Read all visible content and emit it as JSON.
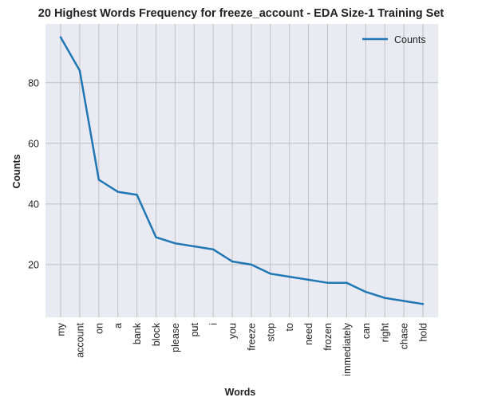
{
  "chart_data": {
    "type": "line",
    "title": "20 Highest Words Frequency for freeze_account - EDA Size-1 Training Set",
    "xlabel": "Words",
    "ylabel": "Counts",
    "categories": [
      "my",
      "account",
      "on",
      "a",
      "bank",
      "block",
      "please",
      "put",
      "i",
      "you",
      "freeze",
      "stop",
      "to",
      "need",
      "frozen",
      "immediately",
      "can",
      "right",
      "chase",
      "hold"
    ],
    "series": [
      {
        "name": "Counts",
        "values": [
          95,
          84,
          48,
          44,
          43,
          29,
          27,
          26,
          25,
          21,
          20,
          17,
          16,
          15,
          14,
          14,
          11,
          9,
          8,
          7
        ],
        "color": "#1f77b4"
      }
    ],
    "ylim": [
      2.6,
      99.4
    ],
    "yticks": [
      20,
      40,
      60,
      80
    ],
    "grid": true,
    "legend_position": "top-right",
    "background_color": "#eaeaf2",
    "grid_color": "#c0c0c0"
  }
}
